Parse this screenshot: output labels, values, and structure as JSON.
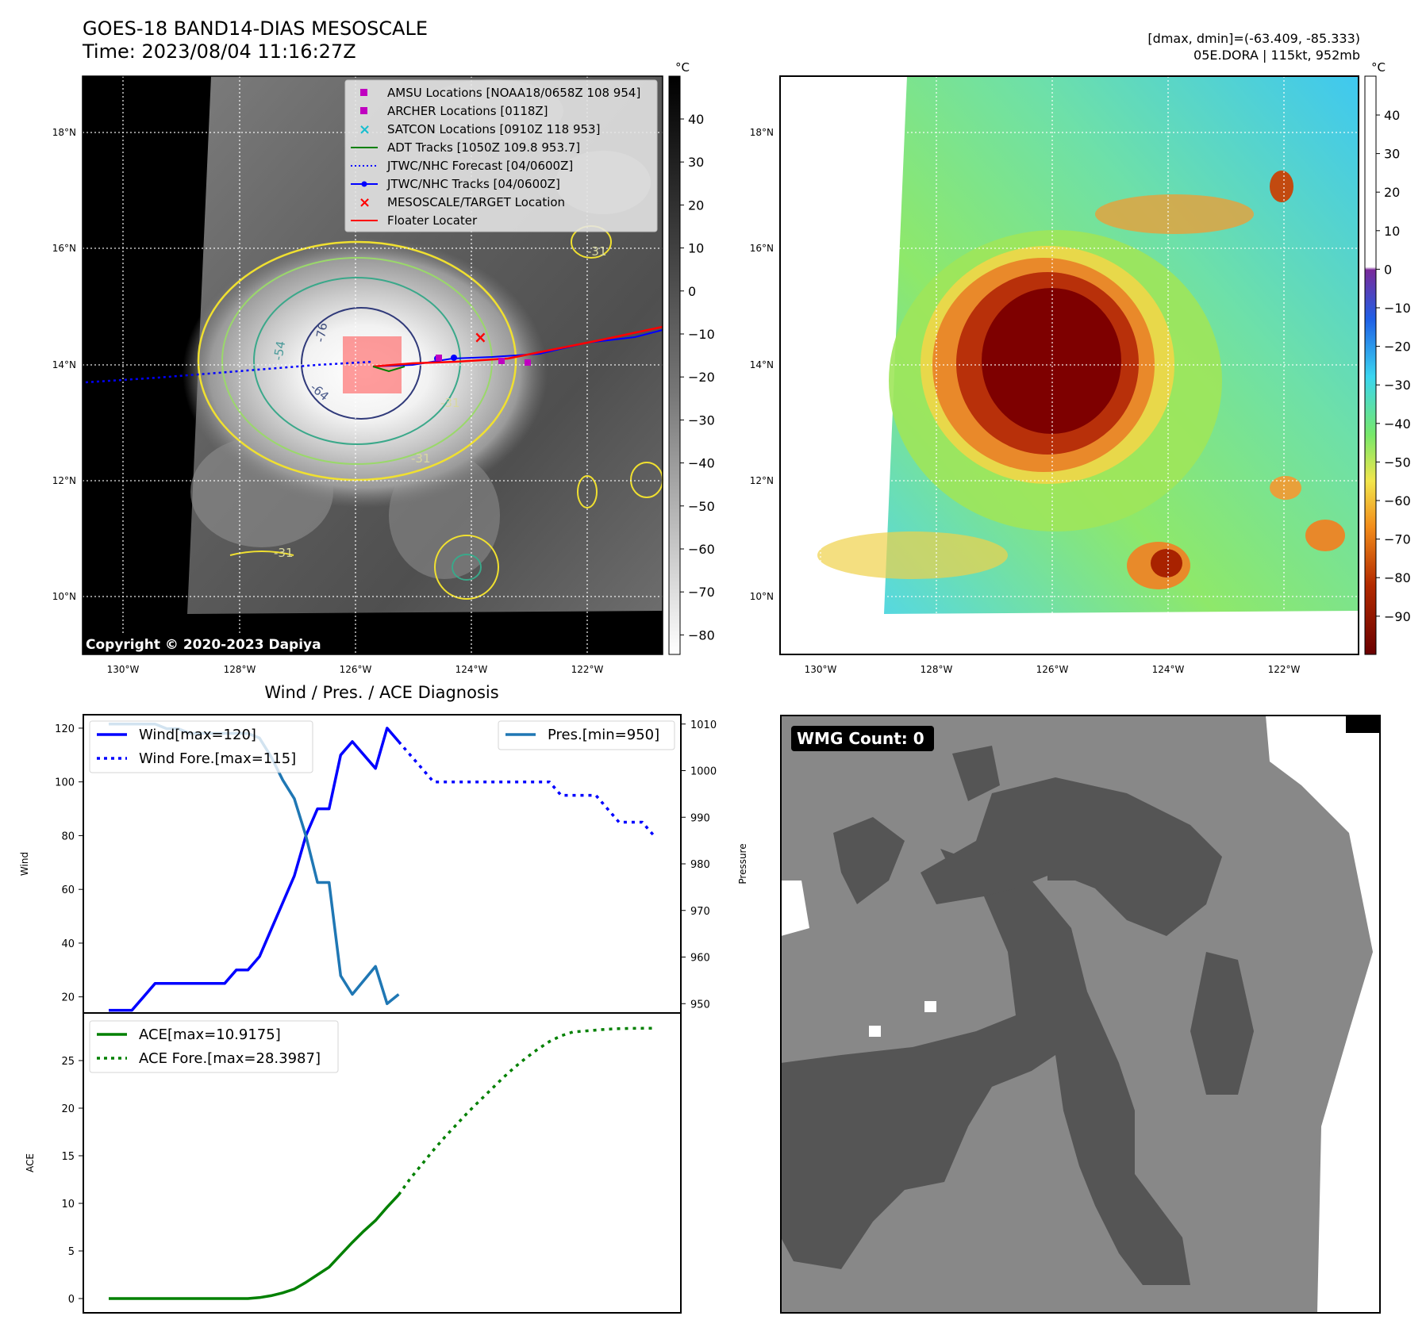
{
  "header": {
    "title": "GOES-18 BAND14-DIAS MESOSCALE",
    "time": "Time: 2023/08/04 11:16:27Z",
    "dmax_dmin": "[dmax, dmin]=(-63.409, -85.333)",
    "storm_info": "05E.DORA | 115kt, 952mb"
  },
  "map": {
    "lat_labels": [
      "18°N",
      "16°N",
      "14°N",
      "12°N",
      "10°N"
    ],
    "lon_labels": [
      "130°W",
      "128°W",
      "126°W",
      "124°W",
      "122°W"
    ],
    "copyright": "Copyright © 2020-2023 Dapiya",
    "contour_labels": [
      "-31",
      "-54",
      "-64",
      "-76"
    ],
    "legend": [
      {
        "label": "AMSU Locations [NOAA18/0658Z 108 954]",
        "color": "#c000c0",
        "marker": "square"
      },
      {
        "label": "ARCHER Locations [0118Z]",
        "color": "#c000c0",
        "marker": "square"
      },
      {
        "label": "SATCON Locations [0910Z 118 953]",
        "color": "#17becf",
        "marker": "x"
      },
      {
        "label": "ADT Tracks [1050Z 109.8 953.7]",
        "color": "#008000",
        "marker": "line"
      },
      {
        "label": "JTWC/NHC Forecast [04/0600Z]",
        "color": "#0000ff",
        "marker": "dotted"
      },
      {
        "label": "JTWC/NHC Tracks [04/0600Z]",
        "color": "#0000ff",
        "marker": "line-dot"
      },
      {
        "label": "MESOSCALE/TARGET Location",
        "color": "#ff0000",
        "marker": "x"
      },
      {
        "label": "Floater Locater",
        "color": "#ff0000",
        "marker": "line"
      }
    ]
  },
  "colorbar_left": {
    "unit": "°C",
    "ticks": [
      "40",
      "30",
      "20",
      "10",
      "0",
      "−10",
      "−20",
      "−30",
      "−40",
      "−50",
      "−60",
      "−70",
      "−80"
    ]
  },
  "colorbar_right": {
    "unit": "°C",
    "ticks": [
      "40",
      "30",
      "20",
      "10",
      "0",
      "−10",
      "−20",
      "−30",
      "−40",
      "−50",
      "−60",
      "−70",
      "−80",
      "−90"
    ]
  },
  "diagnosis": {
    "title": "Wind / Pres. / ACE Diagnosis",
    "wind_axis": "Wind",
    "pressure_axis": "Pressure",
    "ace_axis": "ACE",
    "wind_ticks": [
      "120",
      "100",
      "80",
      "60",
      "40",
      "20"
    ],
    "pressure_ticks": [
      "1010",
      "1000",
      "990",
      "980",
      "970",
      "960",
      "950"
    ],
    "ace_ticks": [
      "25",
      "20",
      "15",
      "10",
      "5",
      "0"
    ],
    "legend_wind": "Wind[max=120]",
    "legend_wind_fore": "Wind Fore.[max=115]",
    "legend_pres": "Pres.[min=950]",
    "legend_ace": "ACE[max=10.9175]",
    "legend_ace_fore": "ACE Fore.[max=28.3987]"
  },
  "wmg": {
    "badge": "WMG Count: 0"
  },
  "chart_data": [
    {
      "type": "line",
      "title": "Wind / Pres. / ACE Diagnosis",
      "ylabel": "Wind",
      "ylim": [
        14,
        125
      ],
      "x": [
        0,
        1,
        2,
        3,
        4,
        5,
        6,
        7,
        8,
        9,
        10,
        11,
        12,
        13,
        14,
        15,
        16,
        17,
        18,
        19,
        20,
        21,
        22,
        23,
        24,
        25,
        26,
        27,
        28,
        29,
        30,
        31,
        32,
        33,
        34,
        35,
        36,
        37,
        38,
        39,
        40,
        41,
        42,
        43,
        44,
        45,
        46,
        47
      ],
      "series": [
        {
          "name": "Wind[max=120]",
          "color": "#0000ff",
          "style": "solid",
          "points": [
            [
              0,
              15
            ],
            [
              1,
              15
            ],
            [
              2,
              15
            ],
            [
              3,
              20
            ],
            [
              4,
              25
            ],
            [
              5,
              25
            ],
            [
              6,
              25
            ],
            [
              7,
              25
            ],
            [
              8,
              25
            ],
            [
              9,
              25
            ],
            [
              10,
              25
            ],
            [
              11,
              30
            ],
            [
              12,
              30
            ],
            [
              13,
              35
            ],
            [
              14,
              45
            ],
            [
              15,
              55
            ],
            [
              16,
              65
            ],
            [
              17,
              80
            ],
            [
              18,
              90
            ],
            [
              19,
              90
            ],
            [
              20,
              110
            ],
            [
              21,
              115
            ],
            [
              22,
              110
            ],
            [
              23,
              105
            ],
            [
              24,
              120
            ],
            [
              25,
              115
            ]
          ]
        },
        {
          "name": "Wind Fore.[max=115]",
          "color": "#0000ff",
          "style": "dotted",
          "points": [
            [
              25,
              115
            ],
            [
              26,
              110
            ],
            [
              27,
              105
            ],
            [
              28,
              100
            ],
            [
              29,
              100
            ],
            [
              30,
              100
            ],
            [
              31,
              100
            ],
            [
              32,
              100
            ],
            [
              33,
              100
            ],
            [
              34,
              100
            ],
            [
              35,
              100
            ],
            [
              36,
              100
            ],
            [
              37,
              100
            ],
            [
              38,
              100
            ],
            [
              39,
              95
            ],
            [
              40,
              95
            ],
            [
              41,
              95
            ],
            [
              42,
              95
            ],
            [
              43,
              90
            ],
            [
              44,
              85
            ],
            [
              45,
              85
            ],
            [
              46,
              85
            ],
            [
              47,
              80
            ]
          ]
        }
      ]
    },
    {
      "type": "line",
      "ylabel": "Pressure",
      "ylim": [
        948,
        1012
      ],
      "series": [
        {
          "name": "Pres.[min=950]",
          "color": "#1f77b4",
          "style": "solid",
          "points": [
            [
              0,
              1010
            ],
            [
              1,
              1010
            ],
            [
              2,
              1010
            ],
            [
              3,
              1010
            ],
            [
              4,
              1010
            ],
            [
              5,
              1009
            ],
            [
              6,
              1009
            ],
            [
              7,
              1008
            ],
            [
              8,
              1008
            ],
            [
              9,
              1008
            ],
            [
              10,
              1008
            ],
            [
              11,
              1008
            ],
            [
              12,
              1008
            ],
            [
              13,
              1007
            ],
            [
              14,
              1003
            ],
            [
              15,
              998
            ],
            [
              16,
              994
            ],
            [
              17,
              986
            ],
            [
              18,
              976
            ],
            [
              19,
              976
            ],
            [
              20,
              956
            ],
            [
              21,
              952
            ],
            [
              22,
              955
            ],
            [
              23,
              958
            ],
            [
              24,
              950
            ],
            [
              25,
              952
            ]
          ]
        }
      ]
    },
    {
      "type": "line",
      "ylabel": "ACE",
      "ylim": [
        -1.5,
        30
      ],
      "series": [
        {
          "name": "ACE[max=10.9175]",
          "color": "#008000",
          "style": "solid",
          "points": [
            [
              0,
              0
            ],
            [
              1,
              0
            ],
            [
              2,
              0
            ],
            [
              3,
              0
            ],
            [
              4,
              0
            ],
            [
              5,
              0
            ],
            [
              6,
              0
            ],
            [
              7,
              0
            ],
            [
              8,
              0
            ],
            [
              9,
              0
            ],
            [
              10,
              0
            ],
            [
              11,
              0
            ],
            [
              12,
              0
            ],
            [
              13,
              0.1
            ],
            [
              14,
              0.3
            ],
            [
              15,
              0.6
            ],
            [
              16,
              1.0
            ],
            [
              17,
              1.7
            ],
            [
              18,
              2.5
            ],
            [
              19,
              3.3
            ],
            [
              20,
              4.6
            ],
            [
              21,
              5.9
            ],
            [
              22,
              7.1
            ],
            [
              23,
              8.2
            ],
            [
              24,
              9.6
            ],
            [
              25,
              10.9
            ]
          ]
        },
        {
          "name": "ACE Fore.[max=28.3987]",
          "color": "#008000",
          "style": "dotted",
          "points": [
            [
              25,
              10.9
            ],
            [
              26,
              12.6
            ],
            [
              27,
              14.1
            ],
            [
              28,
              15.6
            ],
            [
              29,
              17.0
            ],
            [
              30,
              18.3
            ],
            [
              31,
              19.6
            ],
            [
              32,
              20.8
            ],
            [
              33,
              22.0
            ],
            [
              34,
              23.2
            ],
            [
              35,
              24.3
            ],
            [
              36,
              25.3
            ],
            [
              37,
              26.2
            ],
            [
              38,
              27.0
            ],
            [
              39,
              27.6
            ],
            [
              40,
              28.0
            ],
            [
              41,
              28.1
            ],
            [
              42,
              28.2
            ],
            [
              43,
              28.3
            ],
            [
              44,
              28.35
            ],
            [
              45,
              28.38
            ],
            [
              46,
              28.39
            ],
            [
              47,
              28.3987
            ]
          ]
        }
      ]
    }
  ]
}
